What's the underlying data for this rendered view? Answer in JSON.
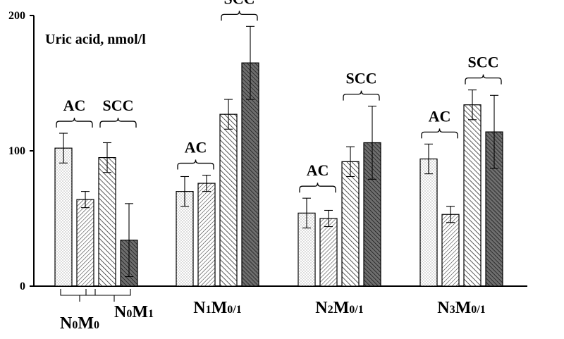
{
  "chart_data": {
    "type": "bar",
    "title": "",
    "ylabel": "Uric acid, nmol/l",
    "xlabel": "",
    "ylim": [
      0,
      200
    ],
    "yticks": [
      0,
      100,
      200
    ],
    "grid": false,
    "legend": "none",
    "groups": [
      {
        "label_parts": [
          {
            "t": "N"
          },
          {
            "t": "0",
            "sub": true
          },
          {
            "t": "M"
          },
          {
            "t": "0",
            "sub": true
          }
        ],
        "label_text": "N0M0",
        "label2_parts": [
          {
            "t": "N"
          },
          {
            "t": "0",
            "sub": true
          },
          {
            "t": "M"
          },
          {
            "t": "1",
            "sub": true
          }
        ],
        "label2_text": "N0M1",
        "bars": [
          {
            "value": 102,
            "error": 11,
            "pattern": "dots"
          },
          {
            "value": 64,
            "error": 6,
            "pattern": "hatch-fine"
          },
          {
            "value": 95,
            "error": 11,
            "pattern": "hatch"
          },
          {
            "value": 34,
            "error": 27,
            "pattern": "dark"
          }
        ],
        "brackets": [
          {
            "label": "AC",
            "from": 0,
            "to": 1
          },
          {
            "label": "SCC",
            "from": 2,
            "to": 3
          }
        ]
      },
      {
        "label_parts": [
          {
            "t": "N"
          },
          {
            "t": "1",
            "sub": true
          },
          {
            "t": "M"
          },
          {
            "t": "0/1",
            "sub": true
          }
        ],
        "label_text": "N1M0/1",
        "bars": [
          {
            "value": 70,
            "error": 11,
            "pattern": "dots"
          },
          {
            "value": 76,
            "error": 6,
            "pattern": "hatch-fine"
          },
          {
            "value": 127,
            "error": 11,
            "pattern": "hatch"
          },
          {
            "value": 165,
            "error": 27,
            "pattern": "dark"
          }
        ],
        "brackets": [
          {
            "label": "AC",
            "from": 0,
            "to": 1
          },
          {
            "label": "SCC",
            "from": 2,
            "to": 3
          }
        ]
      },
      {
        "label_parts": [
          {
            "t": "N"
          },
          {
            "t": "2",
            "sub": true
          },
          {
            "t": "M"
          },
          {
            "t": "0/1",
            "sub": true
          }
        ],
        "label_text": "N2M0/1",
        "bars": [
          {
            "value": 54,
            "error": 11,
            "pattern": "dots"
          },
          {
            "value": 50,
            "error": 6,
            "pattern": "hatch-fine"
          },
          {
            "value": 92,
            "error": 11,
            "pattern": "hatch"
          },
          {
            "value": 106,
            "error": 27,
            "pattern": "dark"
          }
        ],
        "brackets": [
          {
            "label": "AC",
            "from": 0,
            "to": 1
          },
          {
            "label": "SCC",
            "from": 2,
            "to": 3
          }
        ]
      },
      {
        "label_parts": [
          {
            "t": "N"
          },
          {
            "t": "3",
            "sub": true
          },
          {
            "t": "M"
          },
          {
            "t": "0/1",
            "sub": true
          }
        ],
        "label_text": "N3M0/1",
        "bars": [
          {
            "value": 94,
            "error": 11,
            "pattern": "dots"
          },
          {
            "value": 53,
            "error": 6,
            "pattern": "hatch-fine"
          },
          {
            "value": 134,
            "error": 11,
            "pattern": "hatch"
          },
          {
            "value": 114,
            "error": 27,
            "pattern": "dark"
          }
        ],
        "brackets": [
          {
            "label": "AC",
            "from": 0,
            "to": 1
          },
          {
            "label": "SCC",
            "from": 2,
            "to": 3
          }
        ]
      }
    ]
  }
}
